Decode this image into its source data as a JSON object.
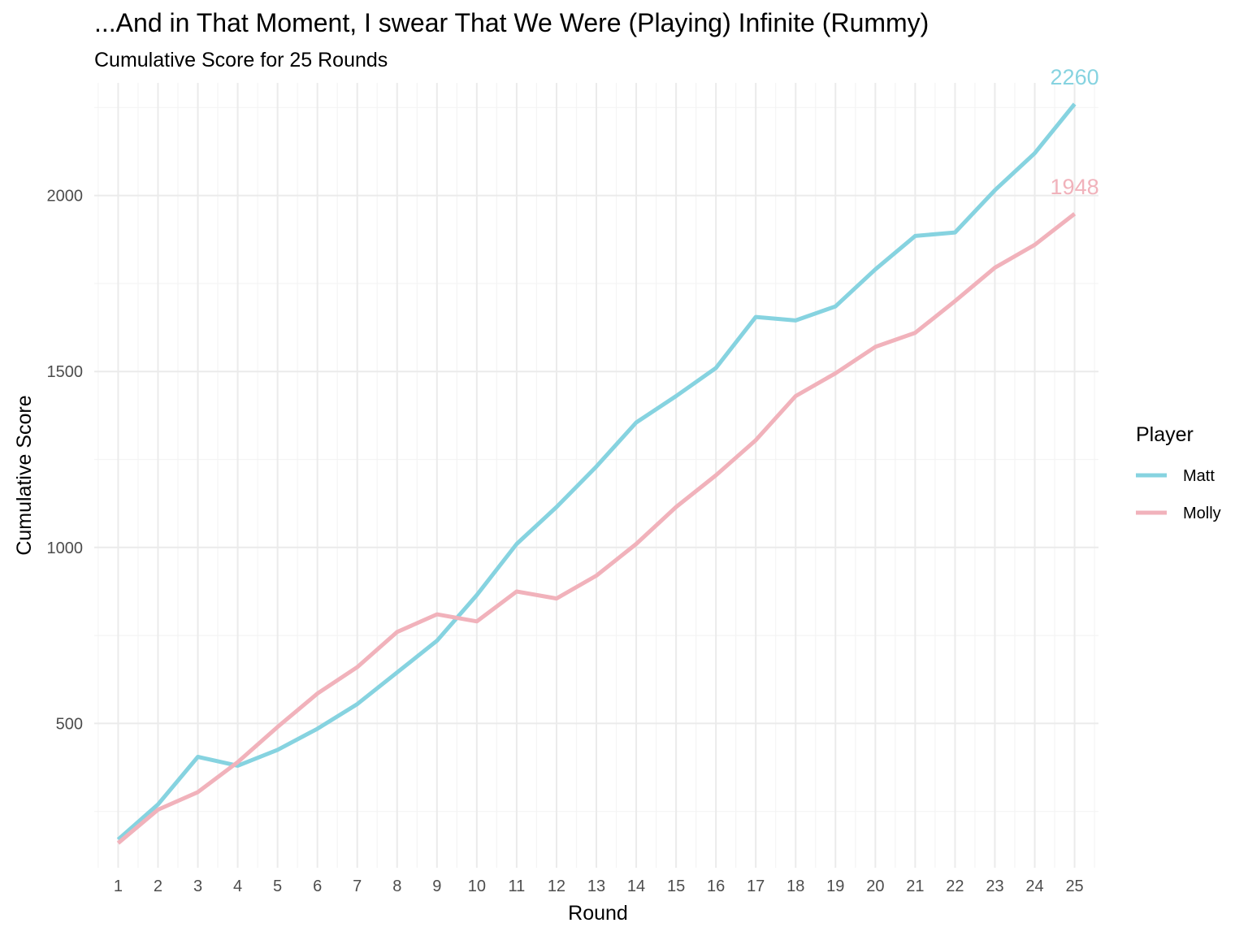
{
  "title": "...And in That Moment, I swear That We Were (Playing) Infinite (Rummy)",
  "subtitle": "Cumulative Score for 25 Rounds",
  "chart_data": {
    "type": "line",
    "xlabel": "Round",
    "ylabel": "Cumulative Score",
    "x": [
      1,
      2,
      3,
      4,
      5,
      6,
      7,
      8,
      9,
      10,
      11,
      12,
      13,
      14,
      15,
      16,
      17,
      18,
      19,
      20,
      21,
      22,
      23,
      24,
      25
    ],
    "y_ticks": [
      500,
      1000,
      1500,
      2000
    ],
    "ylim": [
      90,
      2320
    ],
    "xlim": [
      0.4,
      25.6
    ],
    "grid": true,
    "legend": {
      "title": "Player",
      "position": "right"
    },
    "series": [
      {
        "name": "Matt",
        "color": "#86d3e0",
        "values": [
          170,
          270,
          405,
          380,
          425,
          485,
          555,
          645,
          735,
          865,
          1010,
          1115,
          1230,
          1355,
          1430,
          1510,
          1655,
          1645,
          1685,
          1790,
          1885,
          1895,
          2015,
          2120,
          2260
        ],
        "end_label": "2260"
      },
      {
        "name": "Molly",
        "color": "#f1b2bb",
        "values": [
          160,
          255,
          305,
          390,
          490,
          585,
          660,
          760,
          810,
          790,
          875,
          855,
          920,
          1010,
          1115,
          1205,
          1305,
          1430,
          1495,
          1570,
          1610,
          1700,
          1795,
          1860,
          1948
        ],
        "end_label": "1948"
      }
    ]
  }
}
